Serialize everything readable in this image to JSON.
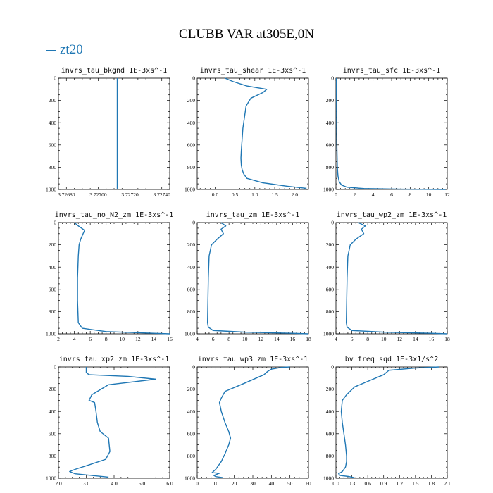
{
  "figure": {
    "title": "CLUBB VAR at305E,0N",
    "legend_label": "zt20",
    "line_color": "#1f77b4"
  },
  "chart_data": [
    {
      "type": "line",
      "title": "invrs_tau_bkgnd   1E-3xs^-1",
      "xlim": [
        3.72675,
        3.72745
      ],
      "ylim": [
        1000,
        0
      ],
      "xticks": [
        3.7268,
        3.727,
        3.7272,
        3.7274
      ],
      "xtick_labels": [
        "3.72680",
        "3.72700",
        "3.72720",
        "3.72740"
      ],
      "yticks": [
        0,
        200,
        400,
        600,
        800,
        1000
      ],
      "series": [
        {
          "x": [
            3.72712,
            3.72712
          ],
          "y": [
            0,
            1000
          ]
        }
      ]
    },
    {
      "type": "line",
      "title": "invrs_tau_shear   1E-3xs^-1",
      "xlim": [
        -0.45,
        2.35
      ],
      "ylim": [
        1000,
        0
      ],
      "xticks": [
        0.0,
        0.5,
        1.0,
        1.5,
        2.0
      ],
      "xtick_labels": [
        "0.0",
        "0.5",
        "1.0",
        "1.5",
        "2.0"
      ],
      "yticks": [
        0,
        200,
        400,
        600,
        800,
        1000
      ],
      "series": [
        {
          "x": [
            0.25,
            0.45,
            0.8,
            1.3,
            1.2,
            0.9,
            0.78,
            0.74,
            0.7,
            0.68,
            0.66,
            0.65,
            0.66,
            0.68,
            0.72,
            0.8,
            1.2,
            1.8,
            2.3
          ],
          "y": [
            0,
            30,
            70,
            100,
            130,
            180,
            250,
            350,
            450,
            550,
            650,
            720,
            780,
            820,
            860,
            900,
            940,
            970,
            990
          ]
        }
      ]
    },
    {
      "type": "line",
      "title": "invrs_tau_sfc   1E-3xs^-1",
      "xlim": [
        0,
        12
      ],
      "ylim": [
        1000,
        0
      ],
      "xticks": [
        0,
        2,
        4,
        6,
        8,
        10,
        12
      ],
      "xtick_labels": [
        "0",
        "2",
        "4",
        "6",
        "8",
        "10",
        "12"
      ],
      "yticks": [
        0,
        200,
        400,
        600,
        800,
        1000
      ],
      "series": [
        {
          "x": [
            0.05,
            0.06,
            0.08,
            0.1,
            0.15,
            0.22,
            0.35,
            0.6,
            1.2,
            3.0,
            7.0,
            11.8
          ],
          "y": [
            0,
            200,
            400,
            600,
            800,
            880,
            930,
            960,
            980,
            992,
            997,
            1000
          ]
        }
      ]
    },
    {
      "type": "line",
      "title": "invrs_tau_no_N2_zm   1E-3xs^-1",
      "xlim": [
        2,
        16
      ],
      "ylim": [
        1000,
        0
      ],
      "xticks": [
        2,
        4,
        6,
        8,
        10,
        12,
        14,
        16
      ],
      "xtick_labels": [
        "2",
        "4",
        "6",
        "8",
        "10",
        "12",
        "14",
        "16"
      ],
      "yticks": [
        0,
        200,
        400,
        600,
        800,
        1000
      ],
      "series": [
        {
          "x": [
            4.0,
            4.5,
            5.3,
            5.1,
            4.8,
            4.6,
            4.5,
            4.4,
            4.4,
            4.5,
            5.0,
            8.0,
            14.0,
            16.0
          ],
          "y": [
            0,
            30,
            70,
            100,
            150,
            200,
            300,
            500,
            700,
            900,
            950,
            980,
            995,
            1000
          ]
        }
      ]
    },
    {
      "type": "line",
      "title": "invrs_tau_zm   1E-3xs^-1",
      "xlim": [
        4,
        18
      ],
      "ylim": [
        1000,
        0
      ],
      "xticks": [
        4,
        6,
        8,
        10,
        12,
        14,
        16,
        18
      ],
      "xtick_labels": [
        "4",
        "6",
        "8",
        "10",
        "12",
        "14",
        "16",
        "18"
      ],
      "yticks": [
        0,
        200,
        400,
        600,
        800,
        1000
      ],
      "series": [
        {
          "x": [
            7.0,
            7.6,
            7.0,
            7.3,
            6.5,
            5.8,
            5.5,
            5.4,
            5.35,
            5.3,
            5.4,
            6.0,
            10.0,
            16.0,
            18.0
          ],
          "y": [
            0,
            30,
            60,
            100,
            150,
            200,
            300,
            500,
            700,
            900,
            940,
            970,
            985,
            995,
            1000
          ]
        }
      ]
    },
    {
      "type": "line",
      "title": "invrs_tau_wp2_zm   1E-3xs^-1",
      "xlim": [
        4,
        18
      ],
      "ylim": [
        1000,
        0
      ],
      "xticks": [
        4,
        6,
        8,
        10,
        12,
        14,
        16,
        18
      ],
      "xtick_labels": [
        "4",
        "6",
        "8",
        "10",
        "12",
        "14",
        "16",
        "18"
      ],
      "yticks": [
        0,
        200,
        400,
        600,
        800,
        1000
      ],
      "series": [
        {
          "x": [
            6.8,
            7.7,
            7.2,
            7.5,
            6.5,
            5.8,
            5.5,
            5.4,
            5.35,
            5.3,
            5.4,
            6.0,
            10.0,
            16.0,
            18.0
          ],
          "y": [
            0,
            30,
            60,
            100,
            150,
            200,
            300,
            500,
            700,
            900,
            940,
            970,
            985,
            995,
            1000
          ]
        }
      ]
    },
    {
      "type": "line",
      "title": "invrs_tau_xp2_zm   1E-3xs^-1",
      "xlim": [
        2.0,
        6.0
      ],
      "ylim": [
        1000,
        0
      ],
      "xticks": [
        2.0,
        3.0,
        4.0,
        5.0,
        6.0
      ],
      "xtick_labels": [
        "2.0",
        "3.0",
        "4.0",
        "5.0",
        "6.0"
      ],
      "yticks": [
        0,
        200,
        400,
        600,
        800,
        1000
      ],
      "series": [
        {
          "x": [
            3.0,
            3.0,
            3.1,
            4.5,
            5.5,
            3.8,
            3.4,
            3.2,
            3.1,
            3.3,
            3.35,
            3.4,
            3.5,
            3.8,
            3.85,
            3.7,
            3.1,
            2.6,
            2.4,
            2.6,
            3.2,
            3.8
          ],
          "y": [
            0,
            50,
            70,
            85,
            110,
            160,
            220,
            250,
            300,
            320,
            400,
            500,
            580,
            640,
            760,
            830,
            880,
            920,
            940,
            960,
            975,
            990
          ]
        }
      ]
    },
    {
      "type": "line",
      "title": "invrs_tau_wp3_zm   1E-3xs^-1",
      "xlim": [
        0,
        60
      ],
      "ylim": [
        1000,
        0
      ],
      "xticks": [
        0,
        10,
        20,
        30,
        40,
        50,
        60
      ],
      "xtick_labels": [
        "0",
        "10",
        "20",
        "30",
        "40",
        "50",
        "60"
      ],
      "yticks": [
        0,
        200,
        400,
        600,
        800,
        1000
      ],
      "series": [
        {
          "x": [
            50,
            45,
            40,
            38,
            36,
            25,
            15,
            13,
            12,
            13,
            15,
            17,
            18,
            17,
            15,
            13,
            10,
            8,
            12,
            9,
            10,
            14
          ],
          "y": [
            0,
            5,
            20,
            40,
            70,
            150,
            220,
            280,
            320,
            400,
            500,
            580,
            640,
            700,
            780,
            850,
            920,
            950,
            955,
            975,
            985,
            995
          ]
        }
      ]
    },
    {
      "type": "line",
      "title": "bv_freq_sqd   1E-3x1/s^2",
      "xlim": [
        0.0,
        2.1
      ],
      "ylim": [
        1000,
        0
      ],
      "xticks": [
        0.0,
        0.3,
        0.6,
        0.9,
        1.2,
        1.5,
        1.8,
        2.1
      ],
      "xtick_labels": [
        "0.0",
        "0.3",
        "0.6",
        "0.9",
        "1.2",
        "1.5",
        "1.8",
        "2.1"
      ],
      "yticks": [
        0,
        200,
        400,
        600,
        800,
        1000
      ],
      "series": [
        {
          "x": [
            1.95,
            1.5,
            1.0,
            0.9,
            0.6,
            0.35,
            0.2,
            0.12,
            0.1,
            0.12,
            0.15,
            0.18,
            0.2,
            0.2,
            0.18,
            0.12,
            0.05,
            0.08,
            0.25,
            0.35
          ],
          "y": [
            0,
            10,
            30,
            70,
            130,
            180,
            250,
            300,
            400,
            500,
            600,
            700,
            800,
            850,
            900,
            940,
            960,
            975,
            985,
            995
          ]
        }
      ]
    }
  ]
}
